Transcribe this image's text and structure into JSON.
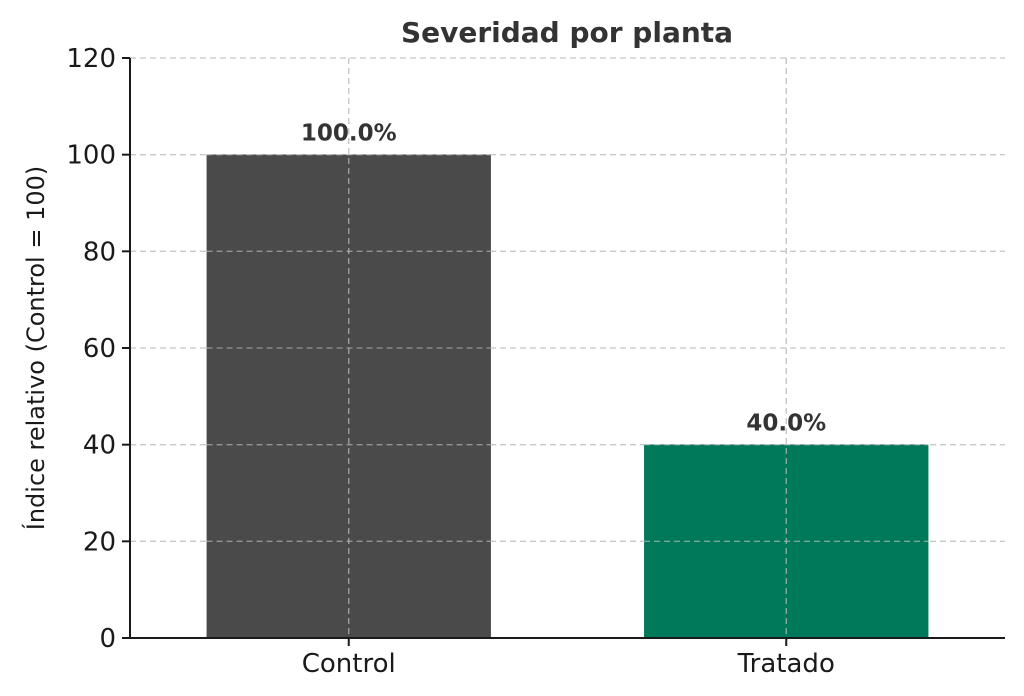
{
  "chart_data": {
    "type": "bar",
    "title": "Severidad por planta",
    "xlabel": "",
    "ylabel": "Índice relativo (Control = 100)",
    "categories": [
      "Control",
      "Tratado"
    ],
    "values": [
      100.0,
      40.0
    ],
    "data_labels": [
      "100.0%",
      "40.0%"
    ],
    "colors": [
      "#4a4a4a",
      "#00785a"
    ],
    "ylim": [
      0,
      120
    ],
    "yticks": [
      0,
      20,
      40,
      60,
      80,
      100,
      120
    ],
    "grid": true,
    "legend": "none"
  }
}
